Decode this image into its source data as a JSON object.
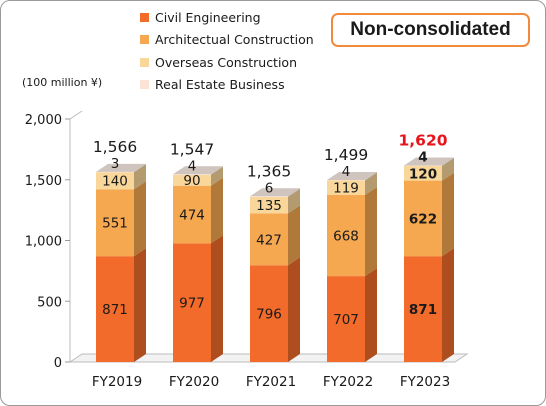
{
  "badge": "Non-consolidated",
  "unit": "(100 million ¥)",
  "colors": {
    "civil": "#f26b2a",
    "architectural": "#f5a84f",
    "overseas": "#f9d79a",
    "real_estate": "#fbe3d5",
    "total_highlight": "#e8141b"
  },
  "chart_data": {
    "type": "bar",
    "stacked": true,
    "categories": [
      "FY2019",
      "FY2020",
      "FY2021",
      "FY2022",
      "FY2023"
    ],
    "series": [
      {
        "name": "Civil Engineering",
        "values": [
          871,
          977,
          796,
          707,
          871
        ]
      },
      {
        "name": "Architectual Construction",
        "values": [
          551,
          474,
          427,
          668,
          622
        ]
      },
      {
        "name": "Overseas Construction",
        "values": [
          140,
          90,
          135,
          119,
          120
        ]
      },
      {
        "name": "Real Estate Business",
        "values": [
          3,
          4,
          6,
          4,
          4
        ]
      }
    ],
    "totals": [
      "1,566",
      "1,547",
      "1,365",
      "1,499",
      "1,620"
    ],
    "highlight_index": 4,
    "yticks": [
      "0",
      "500",
      "1,000",
      "1,500",
      "2,000"
    ],
    "ylim": [
      0,
      2000
    ],
    "legend_position": "top",
    "grid": false
  }
}
